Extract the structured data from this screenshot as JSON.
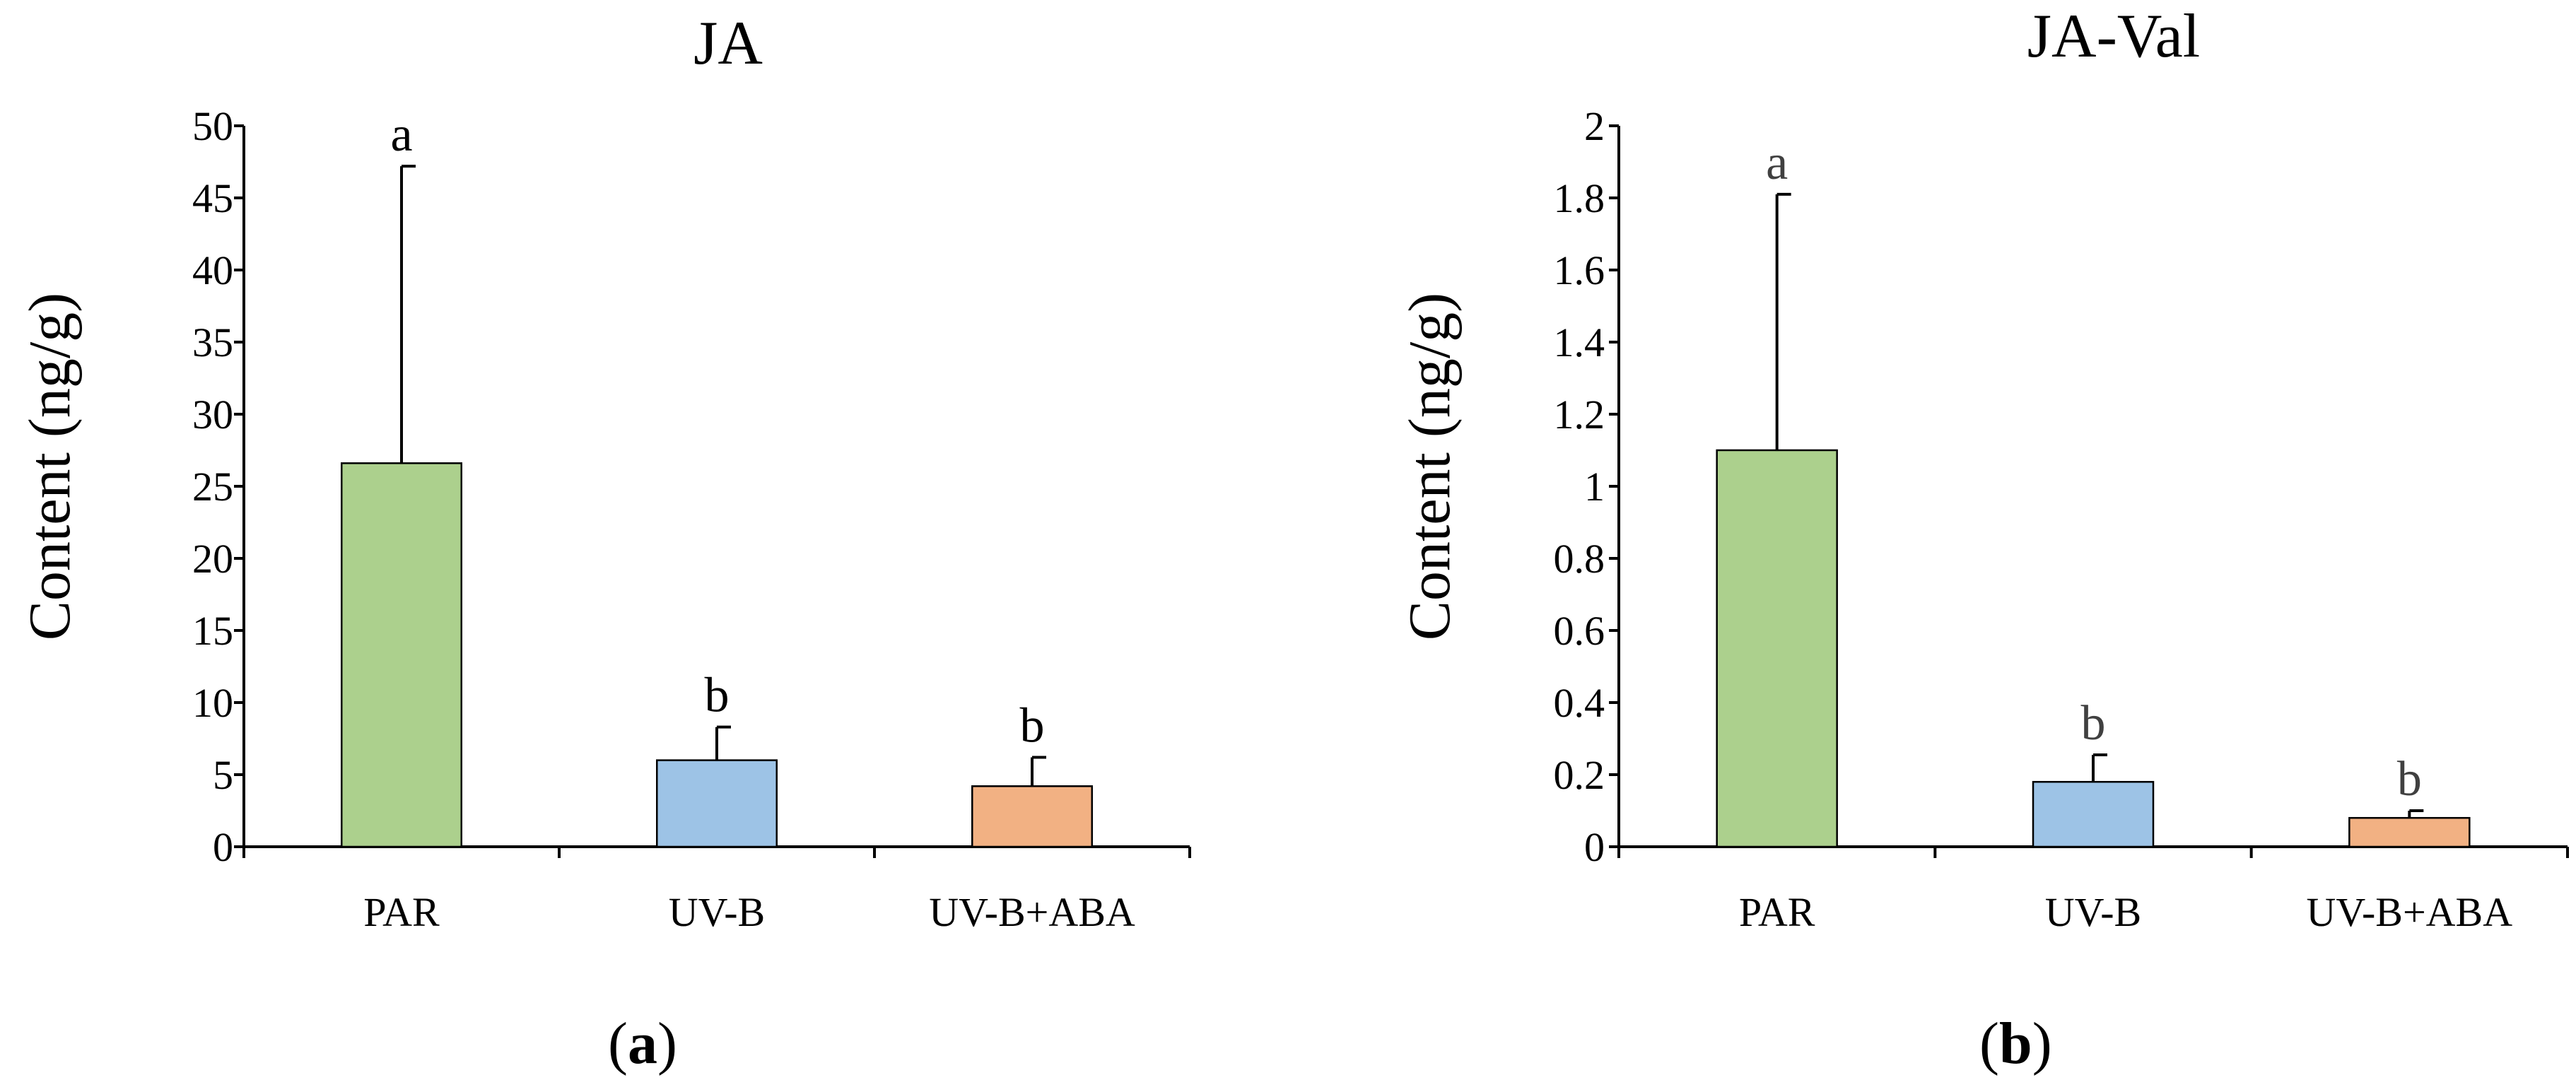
{
  "colors": {
    "par": "#acd08d",
    "uvb": "#9dc3e6",
    "uvb_aba": "#f2b183",
    "axis": "#000000",
    "letter_panel_b": "#404040"
  },
  "panels": [
    {
      "label": "a",
      "chart_data": {
        "type": "bar",
        "title": "JA",
        "ylabel": "Content (ng/g)",
        "xlabel": "",
        "categories": [
          "PAR",
          "UV-B",
          "UV-B+ABA"
        ],
        "values": [
          26.6,
          6.0,
          4.2
        ],
        "errors": [
          20.6,
          2.3,
          2.0
        ],
        "significance": [
          "a",
          "b",
          "b"
        ],
        "ylim": [
          0,
          50
        ],
        "yticks": [
          0,
          5,
          10,
          15,
          20,
          25,
          30,
          35,
          40,
          45,
          50
        ],
        "ytick_labels": [
          "0",
          "5",
          "10",
          "15",
          "20",
          "25",
          "30",
          "35",
          "40",
          "45",
          "50"
        ],
        "grid": false
      }
    },
    {
      "label": "b",
      "chart_data": {
        "type": "bar",
        "title": "JA-Val",
        "ylabel": "Content (ng/g)",
        "xlabel": "",
        "categories": [
          "PAR",
          "UV-B",
          "UV-B+ABA"
        ],
        "values": [
          1.1,
          0.18,
          0.08
        ],
        "errors": [
          0.71,
          0.075,
          0.02
        ],
        "significance": [
          "a",
          "b",
          "b"
        ],
        "ylim": [
          0,
          2
        ],
        "yticks": [
          0,
          0.2,
          0.4,
          0.6,
          0.8,
          1.0,
          1.2,
          1.4,
          1.6,
          1.8,
          2.0
        ],
        "ytick_labels": [
          "0",
          "0.2",
          "0.4",
          "0.6",
          "0.8",
          "1",
          "1.2",
          "1.4",
          "1.6",
          "1.8",
          "2"
        ],
        "grid": false
      }
    }
  ]
}
